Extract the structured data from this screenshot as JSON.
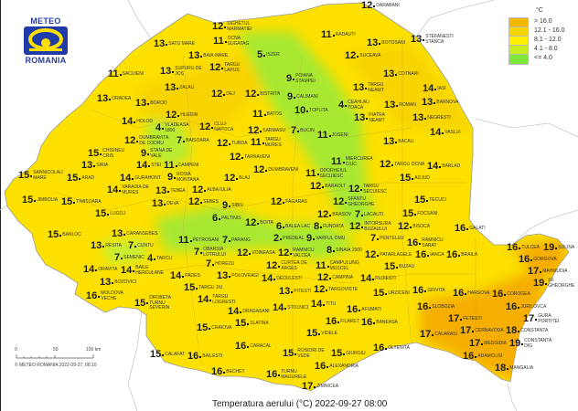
{
  "logo": {
    "top": "METEO",
    "bottom": "ROMANIA"
  },
  "legend": {
    "unit": "°C",
    "classes": [
      {
        "label": "> 16.0",
        "color": "#f5b800"
      },
      {
        "label": "12.1 - 16.0",
        "color": "#fcd400"
      },
      {
        "label": "8.1 - 12.0",
        "color": "#fff200"
      },
      {
        "label": "4.1 - 8.0",
        "color": "#c8ee20"
      },
      {
        "label": "<= 4.0",
        "color": "#7ee83a"
      }
    ]
  },
  "scale": {
    "ticks": [
      "0",
      "50",
      "100 km"
    ],
    "copyright": "© METEO ROMANIA 2022-09-27, 08:10"
  },
  "title": "Temperatura aerului (°C) 2022-09-27 08:00",
  "stations": [
    [
      "SIGHETUL MARMATIEI",
      12
    ],
    [
      "OCNA SUGATAG",
      11
    ],
    [
      "SATU MARE",
      13
    ],
    [
      "BAIA MARE",
      13
    ],
    [
      "ISZER",
      5
    ],
    [
      "SUPURU DE JOS",
      13
    ],
    [
      "SACUIENI",
      11
    ],
    [
      "TARGU LAPUS",
      12
    ],
    [
      "ZALAU",
      13
    ],
    [
      "DEJ",
      12
    ],
    [
      "BISTRITA",
      12
    ],
    [
      "ORADEA",
      13
    ],
    [
      "BOROD",
      13
    ],
    [
      "HUEDIN",
      12
    ],
    [
      "BATOS",
      11
    ],
    [
      "HOLOD",
      14
    ],
    [
      "VLADEASA 1800",
      4
    ],
    [
      "CLUJ-NAPOCA",
      12
    ],
    [
      "SARMASU",
      12
    ],
    [
      "DUMBRAVITA DE CODRU",
      12
    ],
    [
      "STANA DE VALE",
      9
    ],
    [
      "CHISINEU CRIS",
      15
    ],
    [
      "STEI",
      14
    ],
    [
      "BAISOARA",
      7
    ],
    [
      "TURDA",
      12
    ],
    [
      "TARGU MURES",
      11
    ],
    [
      "CAMPENI",
      11
    ],
    [
      "ROSIA MONTANA",
      9
    ],
    [
      "SIRIA",
      13
    ],
    [
      "GURAHONT",
      14
    ],
    [
      "TARNAVENI",
      12
    ],
    [
      "SANNICOLAU MARE",
      15
    ],
    [
      "ARAD",
      15
    ],
    [
      "VARADIA DE MURES",
      14
    ],
    [
      "TEBEA",
      13
    ],
    [
      "ALBA IULIA",
      12
    ],
    [
      "BLAJ",
      12
    ],
    [
      "DUMBRAVENI",
      12
    ],
    [
      "SEBES",
      12
    ],
    [
      "JIMBOLIA",
      15
    ],
    [
      "TIMISOARA",
      15
    ],
    [
      "DEVA",
      13
    ],
    [
      "SIBIU",
      9
    ],
    [
      "FAGARAS",
      12
    ],
    [
      "LUGOJ",
      15
    ],
    [
      "PALTINIS",
      6
    ],
    [
      "BOITA",
      12
    ],
    [
      "BALEA LAC",
      6
    ],
    [
      "BANLOC",
      15
    ],
    [
      "CARANSEBES",
      13
    ],
    [
      "RESITA",
      13
    ],
    [
      "CUNTU",
      7
    ],
    [
      "PETROSANI",
      11
    ],
    [
      "OBARSIA LOTRULUI",
      7
    ],
    [
      "PARANG",
      7
    ],
    [
      "VOINEASA",
      12
    ],
    [
      "SEMENIC",
      7
    ],
    [
      "TARCU",
      4
    ],
    [
      "HOREZU",
      7
    ],
    [
      "POLOVRAGI",
      13
    ],
    [
      "CURTEA DE ARGES",
      12
    ],
    [
      "ORAVITA",
      14
    ],
    [
      "BOZOVICI",
      13
    ],
    [
      "BAILE HERCULANE",
      14
    ],
    [
      "PADES",
      14
    ],
    [
      "TARGU JIU",
      15
    ],
    [
      "TARGU LOGRESTI",
      14
    ],
    [
      "DEDULESTI",
      14
    ],
    [
      "RAMNICU VALCEA",
      12
    ],
    [
      "PITESTI",
      13
    ],
    [
      "MOLDOVA VECHE",
      16
    ],
    [
      "DROBETA TURNU SEVERIN",
      15
    ],
    [
      "DRAGASANI",
      14
    ],
    [
      "STOLNICI",
      14
    ],
    [
      "SLATINA",
      15
    ],
    [
      "CRAIOVA",
      15
    ],
    [
      "CARACAL",
      16
    ],
    [
      "CALAFAT",
      15
    ],
    [
      "BAILESTI",
      16
    ],
    [
      "BECHET",
      16
    ],
    [
      "TURNU MAGURELE",
      16
    ],
    [
      "ROSIORI DE VEDE",
      15
    ],
    [
      "DARABANI",
      12
    ],
    [
      "STEFANESTI STANCA",
      13
    ],
    [
      "RADAUTI",
      11
    ],
    [
      "BOTOSANI",
      13
    ],
    [
      "SUCEAVA",
      12
    ],
    [
      "COTNARI",
      13
    ],
    [
      "POIANA STAMPEI",
      9
    ],
    [
      "TARGU NEAMT",
      13
    ],
    [
      "IASI",
      14
    ],
    [
      "CALIMANI",
      9
    ],
    [
      "CEAHLAU TOACA",
      4
    ],
    [
      "TOPLITA",
      10
    ],
    [
      "PIATRA NEAMT",
      13
    ],
    [
      "ROMAN",
      13
    ],
    [
      "BARNOVA",
      13
    ],
    [
      "NEGRESTI",
      13
    ],
    [
      "VASLUI",
      14
    ],
    [
      "BUCIN",
      7
    ],
    [
      "JOSENI",
      11
    ],
    [
      "BACAU",
      13
    ],
    [
      "MIERCUREA CIUC",
      11
    ],
    [
      "ODORHEIUL SECUIESC",
      11
    ],
    [
      "TARGU OCNA",
      12
    ],
    [
      "BARLAD",
      14
    ],
    [
      "ADJUD",
      15
    ],
    [
      "BARAOLT",
      12
    ],
    [
      "TARGU SECUIESC",
      12
    ],
    [
      "SFANTU GHEORGHE",
      12
    ],
    [
      "LACAUTI",
      7
    ],
    [
      "TECUCI",
      15
    ],
    [
      "BRASOV",
      12
    ],
    [
      "FOCSANI",
      15
    ],
    [
      "INTORSURA BUZAULUI",
      12
    ],
    [
      "PENTELEU",
      7
    ],
    [
      "VARFUL OMU",
      9
    ],
    [
      "PREDEAL",
      2
    ],
    [
      "SINAIA 1500",
      8
    ],
    [
      "FUNDATA",
      8
    ],
    [
      "CAMPULUNG MUSCEL",
      11
    ],
    [
      "BISOCA",
      12
    ],
    [
      "GALATI",
      16
    ],
    [
      "RAMNICU SARAT",
      16
    ],
    [
      "PATARLAGELE",
      12
    ],
    [
      "BRAILA",
      16
    ],
    [
      "TULCEA",
      16
    ],
    [
      "GORGOVA",
      16
    ],
    [
      "SULINA",
      19
    ],
    [
      "MAHMUDIA",
      17
    ],
    [
      "BUZAU",
      15
    ],
    [
      "CAMPINA",
      12
    ],
    [
      "IANCA",
      16
    ],
    [
      "TARGOVISTE",
      12
    ],
    [
      "PLOIESTI",
      14
    ],
    [
      "URZICENI",
      15
    ],
    [
      "GRIVITA",
      16
    ],
    [
      "HARSOVA",
      16
    ],
    [
      "COROGEA",
      16
    ],
    [
      "JURILOVCA",
      16
    ],
    [
      "GURA PORTITEI",
      17
    ],
    [
      "SF. GHEORGHE",
      19
    ],
    [
      "TITU",
      14
    ],
    [
      "AFUMATI",
      16
    ],
    [
      "BANEASA",
      16
    ],
    [
      "FILARET",
      16
    ],
    [
      "SLOBOZIA",
      16
    ],
    [
      "FETESTI",
      17
    ],
    [
      "CERNAVODA",
      17
    ],
    [
      "VIDELE",
      15
    ],
    [
      "CALARASI",
      17
    ],
    [
      "MEDGIDIA",
      17
    ],
    [
      "CONSTANTA",
      18
    ],
    [
      "CONSTANTA DIG",
      19
    ],
    [
      "ADAMCLISI",
      16
    ],
    [
      "OLTENITA",
      16
    ],
    [
      "ALEXANDRIA",
      16
    ],
    [
      "GIURGIU",
      15
    ],
    [
      "MANGALIA",
      18
    ],
    [
      "ZIMNICEA",
      17
    ]
  ]
}
